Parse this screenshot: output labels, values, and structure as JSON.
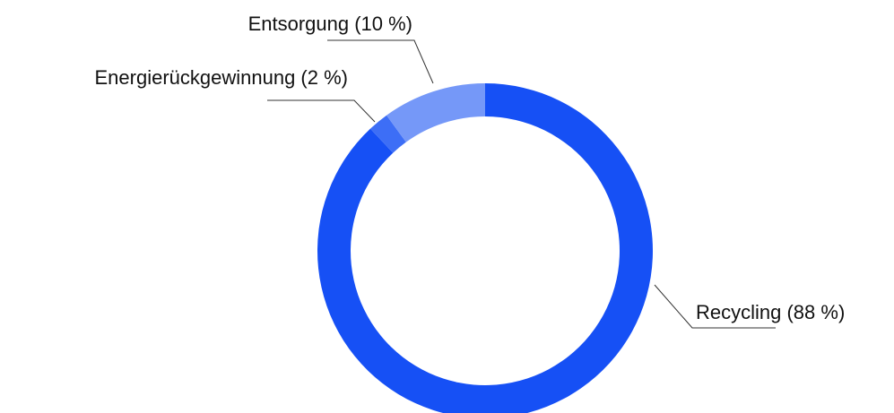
{
  "chart_data": {
    "type": "donut",
    "values": [
      88,
      2,
      10
    ],
    "value_labels": [
      "Recycling (88 %)",
      "Energierückgewinnung (2 %)",
      "Entsorgung (10 %)"
    ],
    "colors": [
      "#1650f5",
      "#3d6ef6",
      "#7598f8"
    ]
  }
}
